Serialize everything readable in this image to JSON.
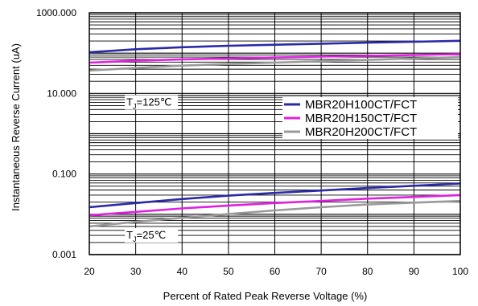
{
  "chart_data": {
    "type": "line",
    "title": "",
    "xlabel": "Percent of Rated Peak Reverse Voltage (%)",
    "ylabel": "Instantaneous Reverse Current (uA)",
    "x_ticks": [
      "20",
      "30",
      "40",
      "50",
      "60",
      "70",
      "80",
      "90",
      "100"
    ],
    "y_ticks": [
      "0.001",
      "0.100",
      "10.000",
      "1000.000"
    ],
    "xlim": [
      20,
      100
    ],
    "ylim": [
      0.001,
      1000
    ],
    "y_scale": "log",
    "grid": true,
    "legend_position": "center-right",
    "annotations": [
      {
        "base": "T",
        "sub": "J",
        "rest": "=125℃",
        "at_x": 28,
        "at_y": 5
      },
      {
        "base": "T",
        "sub": "J",
        "rest": "=25℃",
        "at_x": 28,
        "at_y": 0.0025
      }
    ],
    "x": [
      20,
      30,
      40,
      50,
      60,
      70,
      80,
      90,
      100
    ],
    "series": [
      {
        "name": "MBR20H100CT/FCT",
        "color": "#2a2aa8",
        "group": "125C",
        "values": [
          105,
          125,
          140,
          152,
          162,
          172,
          182,
          192,
          202
        ]
      },
      {
        "name": "MBR20H150CT/FCT",
        "color": "#e020e0",
        "group": "125C",
        "values": [
          58,
          65,
          70,
          74,
          78,
          82,
          86,
          90,
          95
        ]
      },
      {
        "name": "MBR20H200CT/FCT",
        "color": "#9a9a9a",
        "group": "125C",
        "values": [
          37,
          43,
          49,
          54,
          58,
          63,
          68,
          74,
          80
        ]
      },
      {
        "name": "MBR20H100CT/FCT",
        "color": "#2a2aa8",
        "group": "25C",
        "values": [
          0.015,
          0.019,
          0.024,
          0.029,
          0.034,
          0.039,
          0.045,
          0.051,
          0.058
        ]
      },
      {
        "name": "MBR20H150CT/FCT",
        "color": "#e020e0",
        "group": "25C",
        "values": [
          0.0095,
          0.0115,
          0.014,
          0.0165,
          0.019,
          0.0215,
          0.0245,
          0.027,
          0.03
        ]
      },
      {
        "name": "MBR20H200CT/FCT",
        "color": "#9a9a9a",
        "group": "25C",
        "values": [
          0.005,
          0.0065,
          0.0082,
          0.0102,
          0.0125,
          0.015,
          0.0175,
          0.0195,
          0.0215
        ]
      }
    ],
    "legend": [
      {
        "label": "MBR20H100CT/FCT",
        "color": "#2a2aa8"
      },
      {
        "label": "MBR20H150CT/FCT",
        "color": "#e020e0"
      },
      {
        "label": "MBR20H200CT/FCT",
        "color": "#9a9a9a"
      }
    ]
  }
}
